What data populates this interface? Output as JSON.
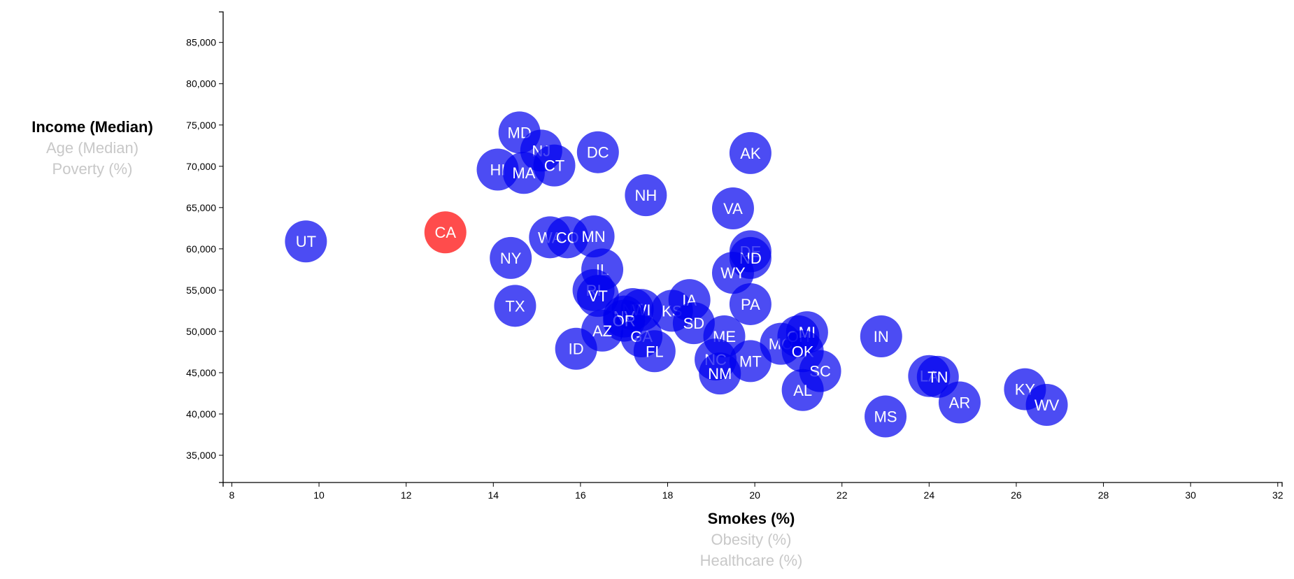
{
  "chart_data": {
    "type": "scatter",
    "xlabel": "Smokes (%)",
    "ylabel": "Income (Median)",
    "x_ticks": [
      8,
      10,
      12,
      14,
      16,
      18,
      20,
      22,
      24,
      26,
      28,
      30,
      32
    ],
    "y_ticks": [
      35000,
      40000,
      45000,
      50000,
      55000,
      60000,
      65000,
      70000,
      75000,
      80000,
      85000
    ],
    "y_tick_labels": [
      "35,000",
      "40,000",
      "45,000",
      "50,000",
      "55,000",
      "60,000",
      "65,000",
      "70,000",
      "75,000",
      "80,000",
      "85,000"
    ],
    "xlim": [
      7.8,
      32.1
    ],
    "ylim": [
      31700,
      88700
    ],
    "point_color": "#0000ee",
    "highlight_color": "#ff0000",
    "points": [
      {
        "label": "UT",
        "x": 9.7,
        "y": 60900
      },
      {
        "label": "CA",
        "x": 12.9,
        "y": 62000,
        "highlight": true
      },
      {
        "label": "MD",
        "x": 14.6,
        "y": 74100
      },
      {
        "label": "NJ",
        "x": 15.1,
        "y": 71900
      },
      {
        "label": "CT",
        "x": 15.4,
        "y": 70100
      },
      {
        "label": "HI",
        "x": 14.1,
        "y": 69600
      },
      {
        "label": "MA",
        "x": 14.7,
        "y": 69200
      },
      {
        "label": "DC",
        "x": 16.4,
        "y": 71700
      },
      {
        "label": "NH",
        "x": 17.5,
        "y": 66500
      },
      {
        "label": "AK",
        "x": 19.9,
        "y": 71600
      },
      {
        "label": "VA",
        "x": 19.5,
        "y": 64900
      },
      {
        "label": "WA",
        "x": 15.3,
        "y": 61400
      },
      {
        "label": "CO",
        "x": 15.7,
        "y": 61400
      },
      {
        "label": "MN",
        "x": 16.3,
        "y": 61500
      },
      {
        "label": "NY",
        "x": 14.4,
        "y": 58900
      },
      {
        "label": "IL",
        "x": 16.5,
        "y": 57500
      },
      {
        "label": "DE",
        "x": 19.9,
        "y": 59700
      },
      {
        "label": "ND",
        "x": 19.9,
        "y": 58900
      },
      {
        "label": "WY",
        "x": 19.5,
        "y": 57100
      },
      {
        "label": "RI",
        "x": 16.3,
        "y": 55000
      },
      {
        "label": "VT",
        "x": 16.4,
        "y": 54300
      },
      {
        "label": "TX",
        "x": 14.5,
        "y": 53100
      },
      {
        "label": "NE",
        "x": 17.2,
        "y": 52700
      },
      {
        "label": "WI",
        "x": 17.4,
        "y": 52600
      },
      {
        "label": "KS",
        "x": 18.1,
        "y": 52500
      },
      {
        "label": "IA",
        "x": 18.5,
        "y": 53800
      },
      {
        "label": "PA",
        "x": 19.9,
        "y": 53300
      },
      {
        "label": "NV",
        "x": 17.0,
        "y": 51800
      },
      {
        "label": "OR",
        "x": 17.0,
        "y": 51300
      },
      {
        "label": "SD",
        "x": 18.6,
        "y": 51000
      },
      {
        "label": "AZ",
        "x": 16.5,
        "y": 50100
      },
      {
        "label": "GA",
        "x": 17.4,
        "y": 49400
      },
      {
        "label": "ID",
        "x": 15.9,
        "y": 47900
      },
      {
        "label": "FL",
        "x": 17.7,
        "y": 47600
      },
      {
        "label": "ME",
        "x": 19.3,
        "y": 49400
      },
      {
        "label": "MO",
        "x": 20.6,
        "y": 48500
      },
      {
        "label": "OH",
        "x": 21.0,
        "y": 49400
      },
      {
        "label": "MI",
        "x": 21.2,
        "y": 49900
      },
      {
        "label": "OK",
        "x": 21.1,
        "y": 47600
      },
      {
        "label": "IN",
        "x": 22.9,
        "y": 49400
      },
      {
        "label": "NC",
        "x": 19.1,
        "y": 46600
      },
      {
        "label": "MT",
        "x": 19.9,
        "y": 46400
      },
      {
        "label": "NM",
        "x": 19.2,
        "y": 44900
      },
      {
        "label": "SC",
        "x": 21.5,
        "y": 45200
      },
      {
        "label": "AL",
        "x": 21.1,
        "y": 42900
      },
      {
        "label": "LA",
        "x": 24.0,
        "y": 44600
      },
      {
        "label": "TN",
        "x": 24.2,
        "y": 44500
      },
      {
        "label": "AR",
        "x": 24.7,
        "y": 41400
      },
      {
        "label": "MS",
        "x": 23.0,
        "y": 39700
      },
      {
        "label": "KY",
        "x": 26.2,
        "y": 43000
      },
      {
        "label": "WV",
        "x": 26.7,
        "y": 41100
      }
    ]
  },
  "y_axis_options": [
    {
      "label": "Income (Median)",
      "active": true
    },
    {
      "label": "Age (Median)",
      "active": false
    },
    {
      "label": "Poverty (%)",
      "active": false
    }
  ],
  "x_axis_options": [
    {
      "label": "Smokes (%)",
      "active": true
    },
    {
      "label": "Obesity (%)",
      "active": false
    },
    {
      "label": "Healthcare (%)",
      "active": false
    }
  ]
}
